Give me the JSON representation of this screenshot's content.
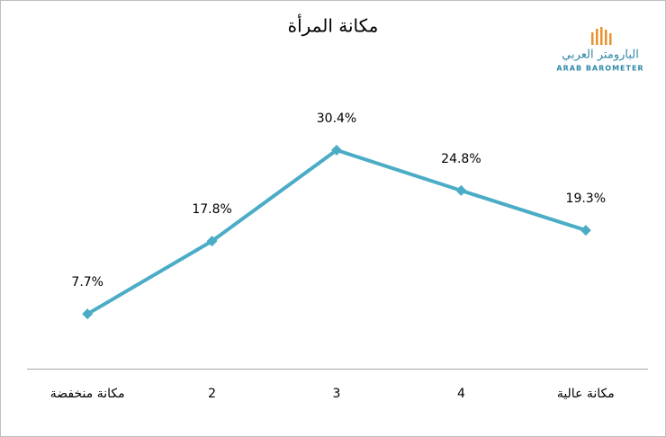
{
  "chart_data": {
    "type": "line",
    "title": "مكانة المرأة",
    "categories": [
      "مكانة منخفضة",
      "2",
      "3",
      "4",
      "مكانة عالية"
    ],
    "values": [
      7.7,
      17.8,
      30.4,
      24.8,
      19.3
    ],
    "value_labels": [
      "7.7%",
      "17.8%",
      "30.4%",
      "24.8%",
      "19.3%"
    ],
    "color": "#4bacc6",
    "ylim": [
      0,
      36
    ]
  },
  "logo": {
    "arabic": "البارومتر العربي",
    "english": "ARAB BAROMETER"
  }
}
